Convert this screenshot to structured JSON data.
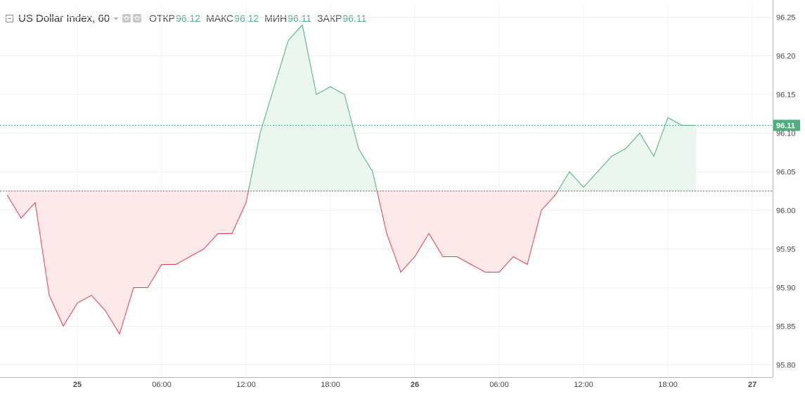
{
  "legend": {
    "symbol": "US Dollar Index, 60",
    "open_label": "ОТКР",
    "open_value": "96.12",
    "high_label": "МАКС",
    "high_value": "96.12",
    "low_label": "МИН",
    "low_value": "96.11",
    "close_label": "ЗАКР",
    "close_value": "96.11"
  },
  "colors": {
    "up_line": "#4caf7d",
    "up_fill": "#eaf6ee",
    "down_line": "#e0424f",
    "down_fill": "#fde8ea",
    "grid": "#eef0f3",
    "last_price_tag": "#4caf7d",
    "last_price_text": "#ffffff"
  },
  "chart_data": {
    "type": "area",
    "baseline": 96.025,
    "last_price": 96.11,
    "last_price_label": "96.11",
    "ylim": [
      95.78,
      96.26
    ],
    "y_ticks": [
      "95.80",
      "95.85",
      "95.90",
      "95.95",
      "96.00",
      "96.05",
      "96.10",
      "96.15",
      "96.20",
      "96.25"
    ],
    "x_range": [
      -5,
      44
    ],
    "x_ticks": [
      {
        "x": 0,
        "label": "25",
        "bold": true
      },
      {
        "x": 6,
        "label": "06:00",
        "bold": false
      },
      {
        "x": 12,
        "label": "12:00",
        "bold": false
      },
      {
        "x": 18,
        "label": "18:00",
        "bold": false
      },
      {
        "x": 24,
        "label": "26",
        "bold": true
      },
      {
        "x": 30,
        "label": "06:00",
        "bold": false
      },
      {
        "x": 36,
        "label": "12:00",
        "bold": false
      },
      {
        "x": 42,
        "label": "18:00",
        "bold": false
      },
      {
        "x": 48,
        "label": "27",
        "bold": true
      }
    ],
    "series": [
      {
        "values": [
          [
            -5,
            96.02
          ],
          [
            -4,
            95.99
          ],
          [
            -3,
            96.01
          ],
          [
            -2,
            95.89
          ],
          [
            -1,
            95.85
          ],
          [
            0,
            95.88
          ],
          [
            1,
            95.89
          ],
          [
            2,
            95.87
          ],
          [
            3,
            95.84
          ],
          [
            4,
            95.9
          ],
          [
            5,
            95.9
          ],
          [
            6,
            95.93
          ],
          [
            7,
            95.93
          ],
          [
            8,
            95.94
          ],
          [
            9,
            95.95
          ],
          [
            10,
            95.97
          ],
          [
            11,
            95.97
          ],
          [
            12,
            96.01
          ],
          [
            13,
            96.1
          ],
          [
            14,
            96.16
          ],
          [
            15,
            96.22
          ],
          [
            16,
            96.24
          ],
          [
            17,
            96.15
          ],
          [
            18,
            96.16
          ],
          [
            19,
            96.15
          ],
          [
            20,
            96.08
          ],
          [
            21,
            96.05
          ],
          [
            22,
            95.97
          ],
          [
            23,
            95.92
          ],
          [
            24,
            95.94
          ],
          [
            25,
            95.97
          ],
          [
            26,
            95.94
          ],
          [
            27,
            95.94
          ],
          [
            28,
            95.93
          ],
          [
            29,
            95.92
          ],
          [
            30,
            95.92
          ],
          [
            31,
            95.94
          ],
          [
            32,
            95.93
          ],
          [
            33,
            96.0
          ],
          [
            34,
            96.02
          ],
          [
            35,
            96.05
          ],
          [
            36,
            96.03
          ],
          [
            37,
            96.05
          ],
          [
            38,
            96.07
          ],
          [
            39,
            96.08
          ],
          [
            40,
            96.1
          ],
          [
            41,
            96.07
          ],
          [
            42,
            96.12
          ],
          [
            43,
            96.11
          ],
          [
            44,
            96.11
          ]
        ]
      }
    ]
  }
}
